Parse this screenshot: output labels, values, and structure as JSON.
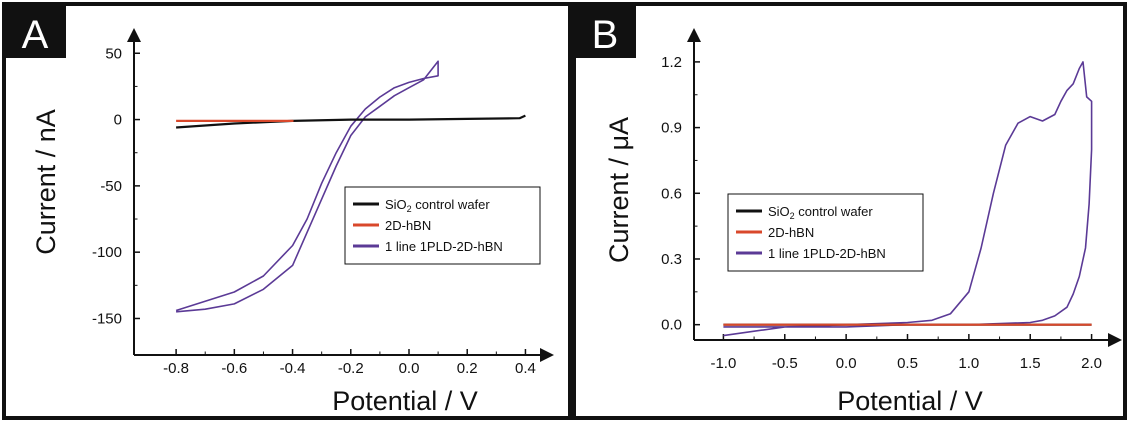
{
  "chart_data": [
    {
      "type": "line",
      "panel_label": "A",
      "xlabel": "Potential / V",
      "ylabel": "Current / nA",
      "xlim": [
        -0.9,
        0.45
      ],
      "ylim": [
        -170,
        60
      ],
      "xticks": [
        -0.8,
        -0.6,
        -0.4,
        -0.2,
        0.0,
        0.2,
        0.4
      ],
      "xtick_labels": [
        "-0.8",
        "-0.6",
        "-0.4",
        "-0.2",
        "0.0",
        "0.2",
        "0.4"
      ],
      "yticks": [
        50,
        0,
        -50,
        -100,
        -150
      ],
      "ytick_labels": [
        "50",
        "0",
        "-50",
        "-100",
        "-150"
      ],
      "grid": false,
      "legend_position": "center-right",
      "series": [
        {
          "name": "SiO2 control wafer",
          "legend_main": "SiO",
          "legend_sub": "2",
          "legend_rest": " control wafer",
          "color": "#111111",
          "x": [
            -0.8,
            -0.6,
            -0.4,
            -0.2,
            0.0,
            0.2,
            0.38,
            0.4
          ],
          "y": [
            -6,
            -3,
            -1,
            0,
            0,
            0.5,
            1,
            3
          ]
        },
        {
          "name": "2D-hBN",
          "color": "#d9482b",
          "x": [
            -0.8,
            -0.6,
            -0.4,
            -0.45
          ],
          "y": [
            -1,
            -1,
            -1,
            -1
          ]
        },
        {
          "name": "1 line 1PLD-2D-hBN",
          "color": "#5b3a96",
          "x": [
            -0.8,
            -0.7,
            -0.6,
            -0.5,
            -0.4,
            -0.35,
            -0.3,
            -0.25,
            -0.2,
            -0.15,
            -0.1,
            -0.05,
            0.0,
            0.05,
            0.1,
            0.1,
            0.05,
            0.0,
            -0.05,
            -0.1,
            -0.15,
            -0.2,
            -0.25,
            -0.3,
            -0.35,
            -0.4,
            -0.5,
            -0.6,
            -0.7,
            -0.8
          ],
          "y": [
            -144,
            -137,
            -130,
            -118,
            -95,
            -75,
            -48,
            -25,
            -5,
            8,
            17,
            24,
            28,
            31,
            33,
            44,
            30,
            24,
            18,
            10,
            2,
            -12,
            -35,
            -60,
            -85,
            -110,
            -128,
            -139,
            -143,
            -145
          ]
        }
      ]
    },
    {
      "type": "line",
      "panel_label": "B",
      "xlabel": "Potential / V",
      "ylabel": "Current / μA",
      "xlim": [
        -1.15,
        2.15
      ],
      "ylim": [
        -0.07,
        1.3
      ],
      "xticks": [
        -1.0,
        -0.5,
        0.0,
        0.5,
        1.0,
        1.5,
        2.0
      ],
      "xtick_labels": [
        "-1.0",
        "-0.5",
        "0.0",
        "0.5",
        "1.0",
        "1.5",
        "2.0"
      ],
      "yticks": [
        1.2,
        0.9,
        0.6,
        0.3,
        0.0
      ],
      "ytick_labels": [
        "1.2",
        "0.9",
        "0.6",
        "0.3",
        "0.0"
      ],
      "grid": false,
      "legend_position": "center-left",
      "series": [
        {
          "name": "SiO2 control wafer",
          "legend_main": "SiO",
          "legend_sub": "2",
          "legend_rest": " control wafer",
          "color": "#111111",
          "x": [
            -1.0,
            2.0
          ],
          "y": [
            0.0,
            0.0
          ]
        },
        {
          "name": "2D-hBN",
          "color": "#d9482b",
          "x": [
            -1.0,
            2.0
          ],
          "y": [
            0.0,
            0.0
          ]
        },
        {
          "name": "1 line 1PLD-2D-hBN",
          "color": "#5b3a96",
          "x": [
            -1.0,
            -0.5,
            0.0,
            0.5,
            0.7,
            0.85,
            1.0,
            1.1,
            1.2,
            1.3,
            1.4,
            1.5,
            1.6,
            1.7,
            1.75,
            1.8,
            1.85,
            1.9,
            1.93,
            1.96,
            2.0,
            2.0,
            1.98,
            1.95,
            1.9,
            1.85,
            1.8,
            1.7,
            1.6,
            1.5,
            1.0,
            0.5,
            0.0,
            -0.5,
            -1.0
          ],
          "y": [
            -0.05,
            -0.01,
            0.0,
            0.01,
            0.02,
            0.05,
            0.15,
            0.35,
            0.6,
            0.82,
            0.92,
            0.95,
            0.93,
            0.96,
            1.02,
            1.07,
            1.1,
            1.17,
            1.2,
            1.04,
            1.02,
            0.8,
            0.55,
            0.35,
            0.22,
            0.14,
            0.08,
            0.04,
            0.02,
            0.01,
            0.0,
            0.0,
            -0.01,
            -0.01,
            -0.01
          ]
        }
      ]
    }
  ]
}
